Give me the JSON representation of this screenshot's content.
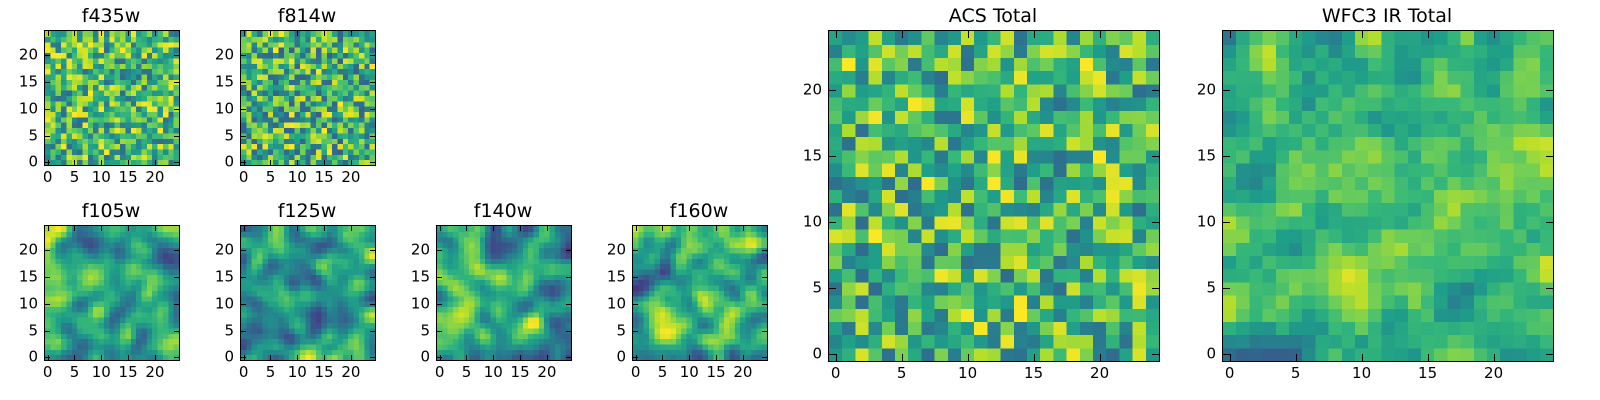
{
  "chart_data": [
    {
      "type": "heatmap",
      "title": "f435w",
      "grid": [
        25,
        25
      ],
      "seed": 11,
      "smooth": 0,
      "xticks": [
        0,
        5,
        10,
        15,
        20
      ],
      "yticks": [
        0,
        5,
        10,
        15,
        20
      ],
      "colormap": "viridis",
      "colorrange": [
        0.35,
        1.0
      ],
      "xlim": [
        -0.5,
        24.5
      ],
      "ylim": [
        -0.5,
        24.5
      ]
    },
    {
      "type": "heatmap",
      "title": "f814w",
      "grid": [
        25,
        25
      ],
      "seed": 23,
      "smooth": 0,
      "xticks": [
        0,
        5,
        10,
        15,
        20
      ],
      "yticks": [
        0,
        5,
        10,
        15,
        20
      ],
      "colormap": "viridis",
      "colorrange": [
        0.3,
        1.0
      ],
      "xlim": [
        -0.5,
        24.5
      ],
      "ylim": [
        -0.5,
        24.5
      ]
    },
    {
      "type": "heatmap",
      "title": "f105w",
      "grid": [
        25,
        25
      ],
      "seed": 37,
      "smooth": 2,
      "xticks": [
        0,
        5,
        10,
        15,
        20
      ],
      "yticks": [
        0,
        5,
        10,
        15,
        20
      ],
      "colormap": "viridis",
      "colorrange": [
        0.2,
        1.0
      ],
      "xlim": [
        -0.5,
        24.5
      ],
      "ylim": [
        -0.5,
        24.5
      ]
    },
    {
      "type": "heatmap",
      "title": "f125w",
      "grid": [
        25,
        25
      ],
      "seed": 41,
      "smooth": 2,
      "xticks": [
        0,
        5,
        10,
        15,
        20
      ],
      "yticks": [
        0,
        5,
        10,
        15,
        20
      ],
      "colormap": "viridis",
      "colorrange": [
        0.2,
        1.0
      ],
      "xlim": [
        -0.5,
        24.5
      ],
      "ylim": [
        -0.5,
        24.5
      ]
    },
    {
      "type": "heatmap",
      "title": "f140w",
      "grid": [
        25,
        25
      ],
      "seed": 53,
      "smooth": 2,
      "xticks": [
        0,
        5,
        10,
        15,
        20
      ],
      "yticks": [
        0,
        5,
        10,
        15,
        20
      ],
      "colormap": "viridis",
      "colorrange": [
        0.15,
        1.0
      ],
      "xlim": [
        -0.5,
        24.5
      ],
      "ylim": [
        -0.5,
        24.5
      ]
    },
    {
      "type": "heatmap",
      "title": "f160w",
      "grid": [
        25,
        25
      ],
      "seed": 67,
      "smooth": 2,
      "xticks": [
        0,
        5,
        10,
        15,
        20
      ],
      "yticks": [
        0,
        5,
        10,
        15,
        20
      ],
      "colormap": "viridis",
      "colorrange": [
        0.15,
        1.0
      ],
      "xlim": [
        -0.5,
        24.5
      ],
      "ylim": [
        -0.5,
        24.5
      ]
    },
    {
      "type": "heatmap",
      "title": "ACS Total",
      "grid": [
        25,
        25
      ],
      "seed": 79,
      "smooth": 0,
      "xticks": [
        0,
        5,
        10,
        15,
        20
      ],
      "yticks": [
        0,
        5,
        10,
        15,
        20
      ],
      "colormap": "viridis",
      "colorrange": [
        0.35,
        1.0
      ],
      "xlim": [
        -0.5,
        24.5
      ],
      "ylim": [
        -0.5,
        24.5
      ]
    },
    {
      "type": "heatmap",
      "title": "WFC3 IR Total",
      "grid": [
        25,
        25
      ],
      "seed": 97,
      "smooth": 1,
      "xticks": [
        0,
        5,
        10,
        15,
        20
      ],
      "yticks": [
        0,
        5,
        10,
        15,
        20
      ],
      "colormap": "viridis",
      "colorrange": [
        0.3,
        0.95
      ],
      "xlim": [
        -0.5,
        24.5
      ],
      "ylim": [
        -0.5,
        24.5
      ]
    }
  ]
}
